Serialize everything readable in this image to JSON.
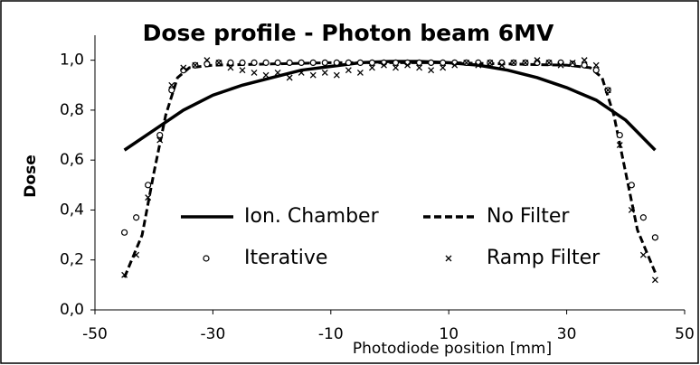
{
  "chart_data": {
    "type": "line",
    "title": "Dose profile - Photon beam 6MV",
    "x_label": "Photodiode position [mm]",
    "y_label": "Dose",
    "xlim": [
      -50,
      50
    ],
    "xticks": [
      -50,
      -30,
      -10,
      10,
      30,
      50
    ],
    "ylim": [
      0,
      1.1
    ],
    "yticks": [
      {
        "value": 0,
        "label": "0,0"
      },
      {
        "value": 0.2,
        "label": "0,2"
      },
      {
        "value": 0.4,
        "label": "0,4"
      },
      {
        "value": 0.6,
        "label": "0,6"
      },
      {
        "value": 0.8,
        "label": "0,8"
      },
      {
        "value": 1.0,
        "label": "1,0"
      }
    ],
    "legend": "lower center",
    "series": [
      {
        "name": "Ion. Chamber",
        "color": "#000000",
        "style": "solid",
        "x": [
          -45,
          -40,
          -35,
          -30,
          -25,
          -20,
          -15,
          -10,
          -5,
          0,
          5,
          10,
          15,
          20,
          25,
          30,
          35,
          40,
          45
        ],
        "values": [
          0.64,
          0.72,
          0.8,
          0.86,
          0.9,
          0.93,
          0.96,
          0.975,
          0.99,
          0.995,
          0.995,
          0.99,
          0.98,
          0.96,
          0.93,
          0.89,
          0.84,
          0.76,
          0.64
        ]
      },
      {
        "name": "No Filter",
        "color": "#000000",
        "style": "dashed",
        "x": [
          -45,
          -42,
          -40,
          -38,
          -36,
          -34,
          -30,
          -20,
          -10,
          0,
          10,
          20,
          30,
          34,
          36,
          38,
          40,
          42,
          45
        ],
        "values": [
          0.13,
          0.3,
          0.55,
          0.78,
          0.93,
          0.97,
          0.98,
          0.985,
          0.99,
          0.99,
          0.99,
          0.985,
          0.98,
          0.97,
          0.93,
          0.78,
          0.55,
          0.32,
          0.15
        ]
      },
      {
        "name": "Iterative",
        "color": "#000000",
        "style": "circle",
        "x": [
          -45,
          -43,
          -41,
          -39,
          -37,
          -35,
          -33,
          -31,
          -29,
          -27,
          -25,
          -23,
          -21,
          -19,
          -17,
          -15,
          -13,
          -11,
          -9,
          -7,
          -5,
          -3,
          -1,
          1,
          3,
          5,
          7,
          9,
          11,
          13,
          15,
          17,
          19,
          21,
          23,
          25,
          27,
          29,
          31,
          33,
          35,
          37,
          39,
          41,
          43,
          45
        ],
        "values": [
          0.31,
          0.37,
          0.5,
          0.7,
          0.88,
          0.96,
          0.98,
          0.985,
          0.99,
          0.99,
          0.99,
          0.99,
          0.99,
          0.99,
          0.99,
          0.99,
          0.99,
          0.99,
          0.99,
          0.99,
          0.99,
          0.99,
          0.99,
          0.99,
          0.99,
          0.99,
          0.99,
          0.99,
          0.99,
          0.99,
          0.99,
          0.99,
          0.99,
          0.99,
          0.99,
          0.99,
          0.99,
          0.99,
          0.985,
          0.98,
          0.96,
          0.88,
          0.7,
          0.5,
          0.37,
          0.29
        ]
      },
      {
        "name": "Ramp Filter",
        "color": "#000000",
        "style": "cross",
        "x": [
          -45,
          -43,
          -41,
          -39,
          -37,
          -35,
          -33,
          -31,
          -29,
          -27,
          -25,
          -23,
          -21,
          -19,
          -17,
          -15,
          -13,
          -11,
          -9,
          -7,
          -5,
          -3,
          -1,
          1,
          3,
          5,
          7,
          9,
          11,
          13,
          15,
          17,
          19,
          21,
          23,
          25,
          27,
          29,
          31,
          33,
          35,
          37,
          39,
          41,
          43,
          45
        ],
        "values": [
          0.14,
          0.22,
          0.45,
          0.68,
          0.9,
          0.97,
          0.98,
          1.0,
          0.99,
          0.97,
          0.96,
          0.95,
          0.94,
          0.95,
          0.93,
          0.95,
          0.94,
          0.95,
          0.94,
          0.96,
          0.95,
          0.97,
          0.98,
          0.97,
          0.98,
          0.97,
          0.96,
          0.97,
          0.98,
          0.99,
          0.98,
          0.99,
          0.98,
          0.99,
          0.99,
          1.0,
          0.99,
          0.98,
          0.99,
          1.0,
          0.98,
          0.88,
          0.66,
          0.4,
          0.22,
          0.12
        ]
      }
    ]
  }
}
